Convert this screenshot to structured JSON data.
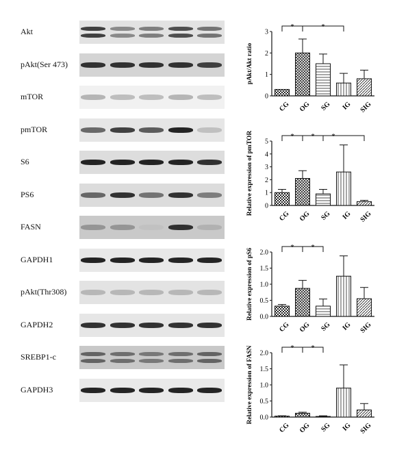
{
  "blots": [
    {
      "label": "Akt",
      "intensity": [
        0.85,
        0.55,
        0.6,
        0.8,
        0.65
      ],
      "double": true,
      "bg": "#e2e2e2"
    },
    {
      "label": "pAkt(Ser 473)",
      "intensity": [
        0.9,
        0.9,
        0.9,
        0.9,
        0.85
      ],
      "double": false,
      "bg": "#d4d4d4"
    },
    {
      "label": "mTOR",
      "intensity": [
        0.35,
        0.3,
        0.3,
        0.35,
        0.3
      ],
      "double": false,
      "bg": "#f1f1f1"
    },
    {
      "label": "pmTOR",
      "intensity": [
        0.7,
        0.85,
        0.75,
        0.95,
        0.25
      ],
      "double": false,
      "bg": "#e6e6e6"
    },
    {
      "label": "S6",
      "intensity": [
        0.95,
        0.95,
        0.95,
        0.95,
        0.9
      ],
      "double": false,
      "bg": "#dddddd"
    },
    {
      "label": "PS6",
      "intensity": [
        0.7,
        0.9,
        0.65,
        0.9,
        0.6
      ],
      "double": false,
      "bg": "#dcdcdc"
    },
    {
      "label": "FASN",
      "intensity": [
        0.45,
        0.45,
        0.1,
        0.9,
        0.25
      ],
      "double": false,
      "bg": "#c9c9c9"
    },
    {
      "label": "GAPDH1",
      "intensity": [
        0.95,
        0.95,
        0.95,
        0.95,
        0.95
      ],
      "double": false,
      "bg": "#e8e8e8"
    },
    {
      "label": "pAkt(Thr308)",
      "intensity": [
        0.3,
        0.3,
        0.3,
        0.3,
        0.3
      ],
      "double": false,
      "bg": "#e3e3e3"
    },
    {
      "label": "GAPDH2",
      "intensity": [
        0.9,
        0.9,
        0.9,
        0.9,
        0.9
      ],
      "double": false,
      "bg": "#e6e6e6"
    },
    {
      "label": "SREBP1-c",
      "intensity": [
        0.7,
        0.65,
        0.6,
        0.65,
        0.7
      ],
      "double": true,
      "bg": "#c8c8c8"
    },
    {
      "label": "GAPDH3",
      "intensity": [
        0.95,
        0.95,
        0.95,
        0.95,
        0.95
      ],
      "double": false,
      "bg": "#e9e9e9"
    }
  ],
  "chart_data": [
    {
      "type": "bar",
      "ylabel": "pAkt/Akt ratio",
      "categories": [
        "CG",
        "OG",
        "SG",
        "IG",
        "SIG"
      ],
      "values": [
        0.3,
        2.0,
        1.5,
        0.6,
        0.8
      ],
      "errors": [
        0.0,
        0.65,
        0.45,
        0.45,
        0.4
      ],
      "ylim": [
        0,
        3
      ],
      "yticks": [
        "0",
        "1",
        "2",
        "3"
      ],
      "significance": [
        {
          "from": 0,
          "to": 1,
          "label": "*"
        },
        {
          "from": 1,
          "to": 3,
          "label": "*"
        }
      ]
    },
    {
      "type": "bar",
      "ylabel": "Relative expression of pmTOR",
      "categories": [
        "CG",
        "OG",
        "SG",
        "IG",
        "SIG"
      ],
      "values": [
        1.0,
        2.1,
        0.9,
        2.6,
        0.3
      ],
      "errors": [
        0.25,
        0.6,
        0.35,
        2.1,
        0.1
      ],
      "ylim": [
        0,
        5
      ],
      "yticks": [
        "0",
        "1",
        "2",
        "3",
        "4",
        "5"
      ],
      "significance": [
        {
          "from": 0,
          "to": 1,
          "label": "*"
        },
        {
          "from": 1,
          "to": 2,
          "label": "*"
        },
        {
          "from": 1,
          "to": 4,
          "label": "*"
        }
      ]
    },
    {
      "type": "bar",
      "ylabel": "Relative expression of pS6",
      "categories": [
        "CG",
        "OG",
        "SG",
        "IG",
        "SIG"
      ],
      "values": [
        0.32,
        0.87,
        0.32,
        1.25,
        0.55
      ],
      "errors": [
        0.05,
        0.25,
        0.22,
        0.63,
        0.35
      ],
      "ylim": [
        0,
        2.0
      ],
      "yticks": [
        "0.0",
        "0.5",
        "1.0",
        "1.5",
        "2.0"
      ],
      "significance": [
        {
          "from": 0,
          "to": 1,
          "label": "*"
        },
        {
          "from": 1,
          "to": 2,
          "label": "*"
        }
      ]
    },
    {
      "type": "bar",
      "ylabel": "Relative expression of FASN",
      "categories": [
        "CG",
        "OG",
        "SG",
        "IG",
        "SIG"
      ],
      "values": [
        0.03,
        0.12,
        0.02,
        0.9,
        0.22
      ],
      "errors": [
        0.01,
        0.03,
        0.02,
        0.72,
        0.2
      ],
      "ylim": [
        0,
        2.0
      ],
      "yticks": [
        "0.0",
        "0.5",
        "1.0",
        "1.5",
        "2.0"
      ],
      "significance": [
        {
          "from": 0,
          "to": 1,
          "label": "*"
        },
        {
          "from": 1,
          "to": 2,
          "label": "*"
        }
      ]
    }
  ]
}
